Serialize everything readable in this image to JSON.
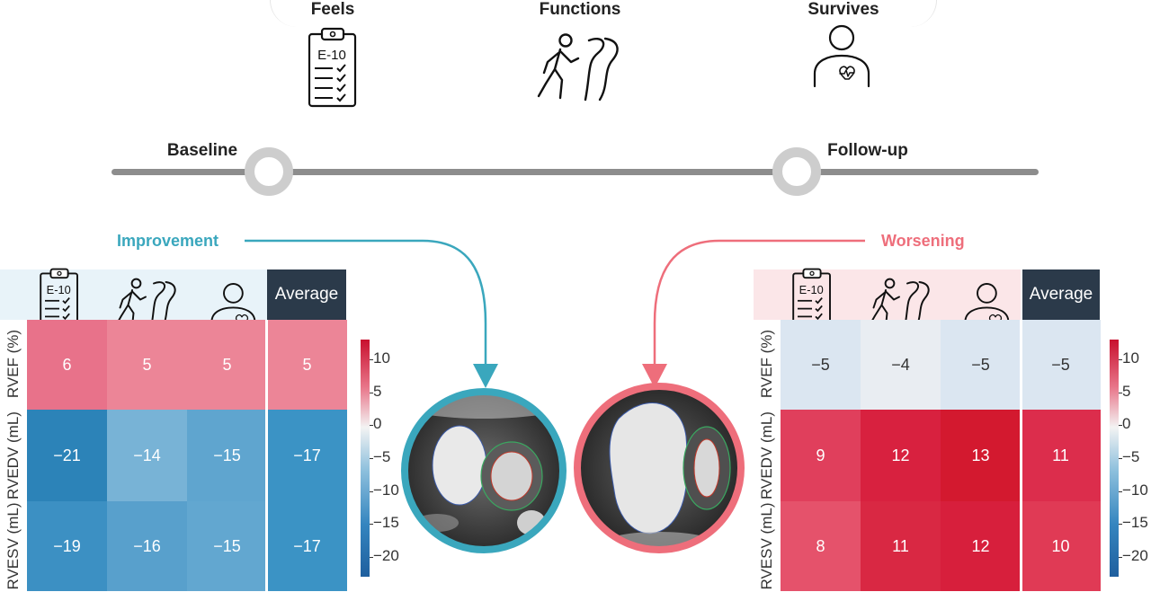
{
  "header": {
    "items": [
      {
        "label": "Feels",
        "icon": "clipboard-icon",
        "icon_text": "E-10"
      },
      {
        "label": "Functions",
        "icon": "walking-person-icon"
      },
      {
        "label": "Survives",
        "icon": "person-heart-icon"
      }
    ]
  },
  "timeline": {
    "baseline_label": "Baseline",
    "followup_label": "Follow-up"
  },
  "improvement": {
    "label": "Improvement",
    "color": "#3aa7bd",
    "icon_text": "E-10",
    "average_label": "Average",
    "row_labels": [
      "RVEF (%)",
      "RVEDV (mL)",
      "RVESV (mL)"
    ],
    "rows": [
      [
        "6",
        "5",
        "5",
        "5"
      ],
      [
        "−21",
        "−14",
        "−15",
        "−17"
      ],
      [
        "−19",
        "−16",
        "−15",
        "−17"
      ]
    ],
    "colors": [
      [
        "#e8728a",
        "#ec8597",
        "#ec8597",
        "#ec8597"
      ],
      [
        "#2c83b8",
        "#78b3d6",
        "#5fa5cf",
        "#3b93c5"
      ],
      [
        "#3c90c3",
        "#58a0cc",
        "#62a7d0",
        "#3b93c5"
      ]
    ]
  },
  "worsening": {
    "label": "Worsening",
    "color": "#ee6e7b",
    "icon_text": "E-10",
    "average_label": "Average",
    "row_labels": [
      "RVEF (%)",
      "RVEDV (mL)",
      "RVESV (mL)"
    ],
    "rows": [
      [
        "−5",
        "−4",
        "−5",
        "−5"
      ],
      [
        "9",
        "12",
        "13",
        "11"
      ],
      [
        "8",
        "11",
        "12",
        "10"
      ]
    ],
    "colors": [
      [
        "#dbe6f1",
        "#e9edf2",
        "#dbe6f1",
        "#dbe6f1"
      ],
      [
        "#e03f5c",
        "#d8213f",
        "#d3192f",
        "#dc2d4c"
      ],
      [
        "#e5526b",
        "#d92843",
        "#d71f3c",
        "#e03a55"
      ]
    ]
  },
  "colorbar": {
    "ticks": [
      "10",
      "5",
      "0",
      "−5",
      "−10",
      "−15",
      "−20"
    ],
    "range": [
      -23,
      13
    ]
  },
  "images": {
    "left_ring_color": "#3aa7bd",
    "right_ring_color": "#ee6e7b"
  }
}
